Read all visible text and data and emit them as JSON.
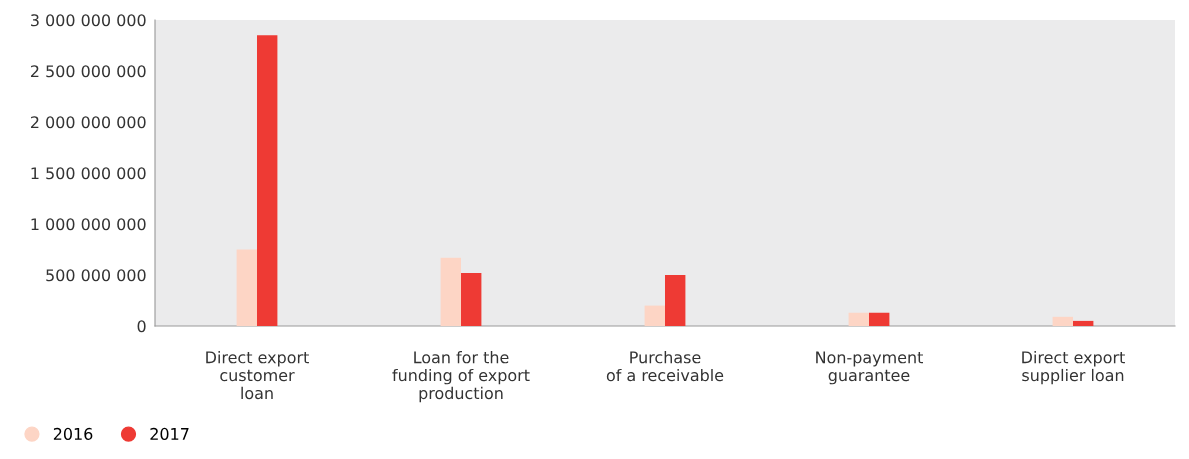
{
  "chart_data": {
    "type": "bar",
    "categories": [
      "Direct export\ncustomer\nloan",
      "Loan for the\nfunding of export\nproduction",
      "Purchase\nof a receivable",
      "Non-payment\nguarantee",
      "Direct export\nsupplier loan"
    ],
    "series": [
      {
        "name": "2016",
        "color": "#fdd5c5",
        "values": [
          750000000,
          670000000,
          200000000,
          130000000,
          90000000
        ]
      },
      {
        "name": "2017",
        "color": "#ee3a34",
        "values": [
          2850000000,
          520000000,
          500000000,
          130000000,
          50000000
        ]
      }
    ],
    "ylim": [
      0,
      3000000000
    ],
    "yticks": [
      {
        "value": 0,
        "label": "0"
      },
      {
        "value": 500000000,
        "label": "500 000 000"
      },
      {
        "value": 1000000000,
        "label": "1 000 000 000"
      },
      {
        "value": 1500000000,
        "label": "1 500 000 000"
      },
      {
        "value": 2000000000,
        "label": "2 000 000 000"
      },
      {
        "value": 2500000000,
        "label": "2 500 000 000"
      },
      {
        "value": 3000000000,
        "label": "3 000 000 000"
      }
    ],
    "grid": false,
    "legend": "bottom left"
  }
}
